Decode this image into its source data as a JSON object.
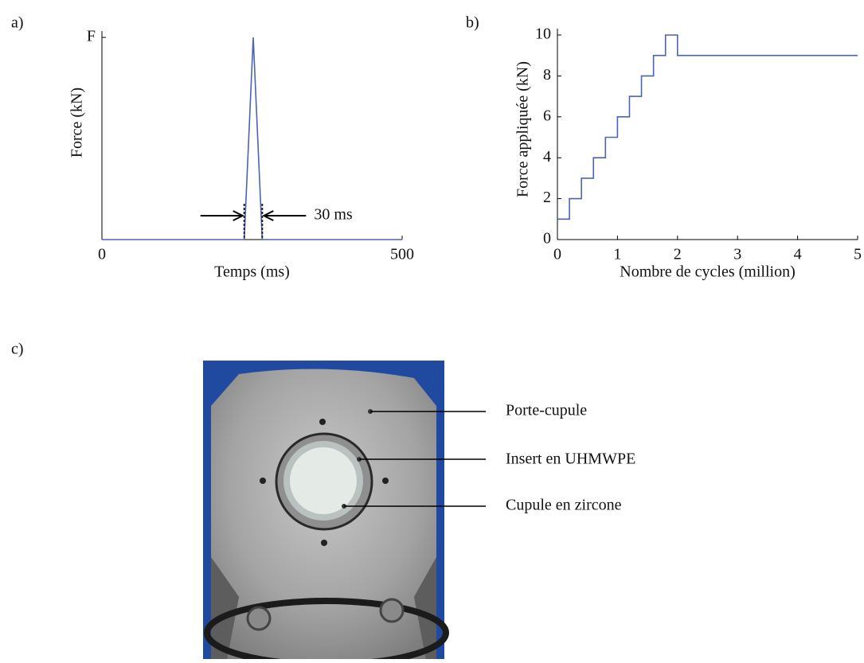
{
  "chart_data": [
    {
      "type": "line",
      "panel": "a)",
      "xlabel": "Temps (ms)",
      "ylabel": "Force (kN)",
      "x": [
        0,
        237,
        252,
        267,
        500
      ],
      "series": [
        {
          "color": "#4a64b4",
          "values": [
            0,
            0,
            1,
            0,
            0
          ]
        }
      ],
      "xlim": [
        0,
        500
      ],
      "xticks": [
        0,
        500
      ],
      "ylim": [
        0,
        1
      ],
      "yticks": [
        {
          "value": 1,
          "label": "F"
        }
      ],
      "annotation": {
        "text": "30 ms",
        "span": [
          237,
          267
        ]
      }
    },
    {
      "type": "step",
      "panel": "b)",
      "xlabel": "Nombre de cycles (million)",
      "ylabel": "Force appliquée (kN)",
      "x": [
        0,
        0.2,
        0.4,
        0.6,
        0.8,
        1.0,
        1.2,
        1.4,
        1.6,
        1.8,
        2.0,
        5
      ],
      "series": [
        {
          "color": "#4a64b4",
          "values": [
            1,
            2,
            3,
            4,
            5,
            6,
            7,
            8,
            9,
            10,
            9,
            9
          ]
        }
      ],
      "xlim": [
        0,
        5
      ],
      "xticks": [
        0,
        1,
        2,
        3,
        4,
        5
      ],
      "ylim": [
        0,
        10
      ],
      "yticks": [
        0,
        2,
        4,
        6,
        8,
        10
      ]
    }
  ],
  "photo": {
    "panel": "c)",
    "labels": [
      "Porte-cupule",
      "Insert en UHMWPE",
      "Cupule en zircone"
    ]
  }
}
